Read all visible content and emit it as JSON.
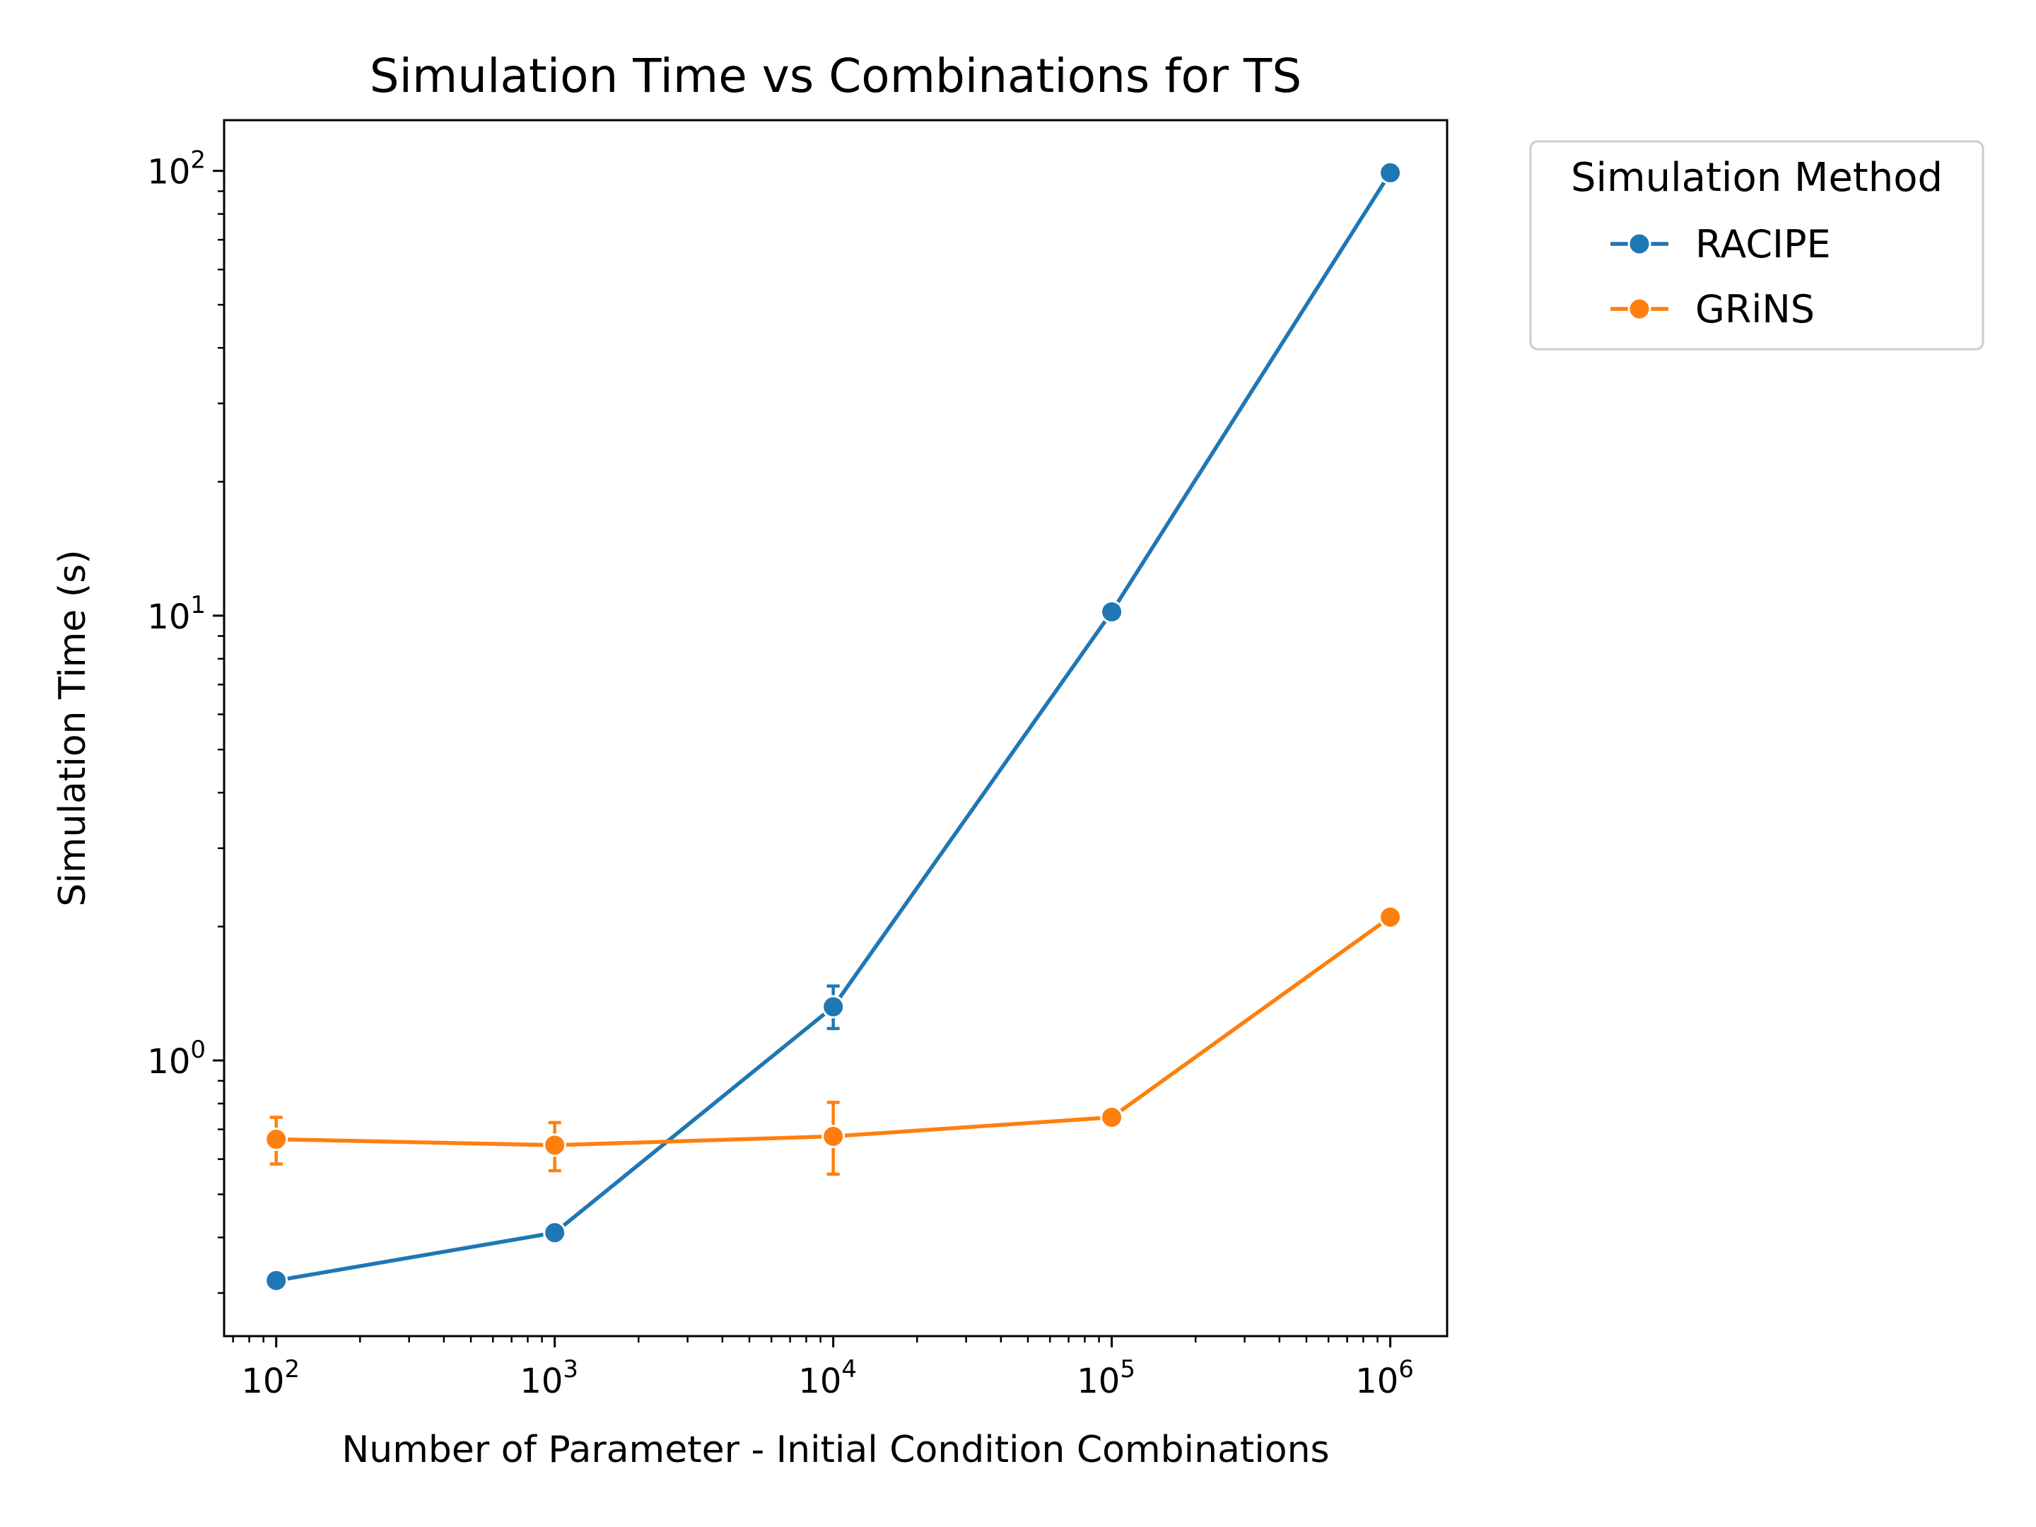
{
  "chart_data": {
    "type": "line",
    "title": "Simulation Time vs Combinations for TS",
    "xlabel": "Number of Parameter - Initial Condition Combinations",
    "ylabel": "Simulation Time (s)",
    "xscale": "log",
    "yscale": "log",
    "xlim": [
      65,
      1600000
    ],
    "ylim": [
      0.24,
      130
    ],
    "x_ticks": [
      {
        "base": "10",
        "exp": "2",
        "value": 100
      },
      {
        "base": "10",
        "exp": "3",
        "value": 1000
      },
      {
        "base": "10",
        "exp": "4",
        "value": 10000
      },
      {
        "base": "10",
        "exp": "5",
        "value": 100000
      },
      {
        "base": "10",
        "exp": "6",
        "value": 1000000
      }
    ],
    "y_ticks": [
      {
        "base": "10",
        "exp": "0",
        "value": 1
      },
      {
        "base": "10",
        "exp": "1",
        "value": 10
      },
      {
        "base": "10",
        "exp": "2",
        "value": 100
      }
    ],
    "grid": false,
    "legend": {
      "title": "Simulation Method",
      "placement": "outside-top-right"
    },
    "series": [
      {
        "name": "RACIPE",
        "color": "#1f77b4",
        "x": [
          100,
          1000,
          10000,
          100000,
          1000000
        ],
        "y": [
          0.32,
          0.41,
          1.32,
          10.2,
          99
        ],
        "err_low": [
          0.315,
          0.395,
          1.18,
          10.0,
          98
        ],
        "err_high": [
          0.325,
          0.425,
          1.47,
          10.4,
          100
        ]
      },
      {
        "name": "GRiNS",
        "color": "#ff7f0e",
        "x": [
          100,
          1000,
          10000,
          100000,
          1000000
        ],
        "y": [
          0.665,
          0.645,
          0.675,
          0.745,
          2.1
        ],
        "err_low": [
          0.585,
          0.565,
          0.555,
          0.715,
          2.08
        ],
        "err_high": [
          0.745,
          0.725,
          0.805,
          0.775,
          2.12
        ]
      }
    ]
  }
}
